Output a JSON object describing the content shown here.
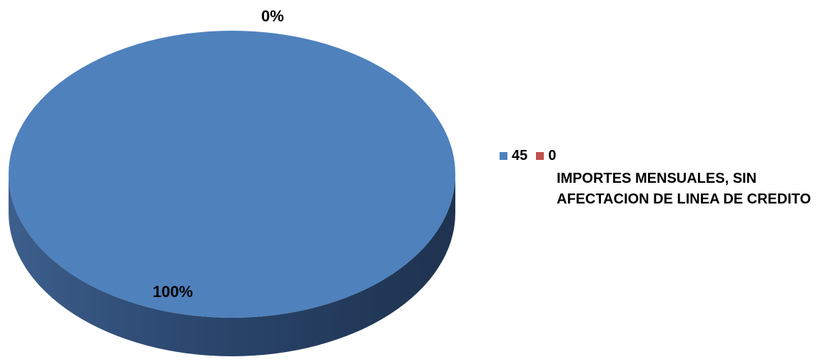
{
  "chart_data": {
    "type": "pie",
    "style": "3d",
    "categories": [
      "45",
      "0"
    ],
    "values": [
      100,
      0
    ],
    "data_labels": [
      "100%",
      "0%"
    ],
    "colors": [
      "#4f81bd",
      "#c0504d"
    ],
    "legend_title": "IMPORTES MENSUALES, SIN AFECTACION DE LINEA DE CREDITO",
    "legend_position": "right"
  }
}
